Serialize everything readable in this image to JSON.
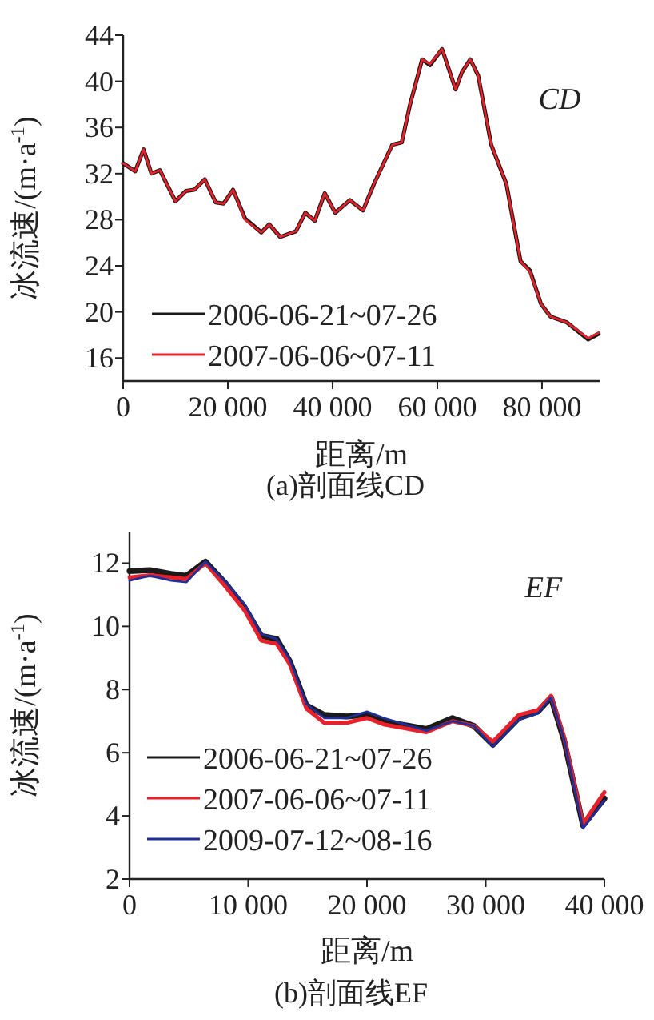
{
  "chart_data": [
    {
      "type": "line",
      "title": "(a)剖面线CD",
      "xlabel": "距离/m",
      "ylabel": "冰流速/(m·a$^{-1}$)",
      "annotations": [
        "CD"
      ],
      "legend": "bottom left",
      "xlim": [
        0,
        91000
      ],
      "ylim": [
        14,
        44
      ],
      "xticks": [
        0,
        {
          "value": 20000,
          "label": "20 000"
        },
        {
          "value": 40000,
          "label": "40 000"
        },
        {
          "value": 60000,
          "label": "60 000"
        },
        {
          "value": 80000,
          "label": "80 000"
        }
      ],
      "yticks": [
        16,
        20,
        24,
        28,
        32,
        36,
        40,
        44
      ],
      "x": [
        0,
        2300,
        3900,
        5400,
        7000,
        10000,
        12000,
        13600,
        15600,
        17700,
        19200,
        21000,
        23300,
        26400,
        27900,
        30000,
        33000,
        34800,
        36600,
        38500,
        40500,
        43300,
        45800,
        47900,
        51400,
        53200,
        54800,
        57100,
        58600,
        60900,
        63500,
        64700,
        66300,
        67800,
        70300,
        73200,
        75900,
        77700,
        79800,
        81600,
        84700,
        88800,
        90800
      ],
      "series": [
        {
          "name": "2006-06-21~07-26",
          "color": "#1a1a1a",
          "values": [
            32.9,
            32.2,
            34.1,
            32.0,
            32.3,
            29.6,
            30.5,
            30.6,
            31.5,
            29.5,
            29.4,
            30.6,
            28.1,
            26.9,
            27.6,
            26.5,
            27.0,
            28.6,
            27.9,
            30.3,
            28.6,
            29.7,
            28.8,
            31.1,
            34.5,
            34.7,
            38.0,
            41.9,
            41.4,
            42.8,
            39.3,
            40.8,
            41.9,
            40.5,
            34.5,
            31.1,
            24.4,
            23.6,
            20.7,
            19.6,
            19.1,
            17.6,
            18.1
          ]
        },
        {
          "name": "2007-06-06~07-11",
          "color": "#e8202a",
          "values": [
            32.9,
            32.2,
            34.1,
            32.0,
            32.3,
            29.6,
            30.5,
            30.6,
            31.5,
            29.5,
            29.4,
            30.6,
            28.0,
            26.9,
            27.6,
            26.5,
            27.0,
            28.6,
            27.9,
            30.3,
            28.6,
            29.7,
            28.8,
            31.1,
            34.5,
            34.7,
            38.0,
            41.9,
            41.5,
            42.8,
            39.3,
            40.8,
            41.9,
            40.5,
            34.5,
            31.1,
            24.4,
            23.5,
            20.7,
            19.6,
            19.1,
            17.7,
            18.2
          ]
        }
      ]
    },
    {
      "type": "line",
      "title": "(b)剖面线EF",
      "xlabel": "距离/m",
      "ylabel": "冰流速/(m·a$^{-1}$)",
      "annotations": [
        "EF"
      ],
      "legend": "bottom left",
      "xlim": [
        0,
        40000
      ],
      "ylim": [
        2,
        13
      ],
      "xticks": [
        0,
        {
          "value": 10000,
          "label": "10 000"
        },
        {
          "value": 20000,
          "label": "20 000"
        },
        {
          "value": 30000,
          "label": "30 000"
        },
        {
          "value": 40000,
          "label": "40 000"
        }
      ],
      "yticks": [
        2,
        4,
        6,
        8,
        10,
        12
      ],
      "x": [
        0,
        1700,
        3500,
        4800,
        6400,
        8000,
        9700,
        11100,
        12400,
        13500,
        14900,
        16400,
        18300,
        20000,
        21400,
        25000,
        27200,
        29000,
        30600,
        32800,
        34400,
        35500,
        36600,
        38200,
        40000
      ],
      "series": [
        {
          "name": "2006-06-21~07-26",
          "color": "#1a1a1a",
          "values": [
            11.75,
            11.78,
            11.66,
            11.6,
            12.05,
            11.4,
            10.6,
            9.7,
            9.6,
            8.9,
            7.5,
            7.2,
            7.15,
            7.2,
            7.0,
            6.75,
            7.1,
            6.85,
            6.25,
            7.1,
            7.3,
            7.75,
            6.4,
            3.7,
            4.55
          ]
        },
        {
          "name": "2007-06-06~07-11",
          "color": "#e8202a",
          "values": [
            11.55,
            11.62,
            11.55,
            11.5,
            12.0,
            11.3,
            10.5,
            9.55,
            9.45,
            8.8,
            7.4,
            6.95,
            6.95,
            7.1,
            6.9,
            6.65,
            7.0,
            6.85,
            6.35,
            7.2,
            7.35,
            7.8,
            6.5,
            3.75,
            4.75
          ]
        },
        {
          "name": "2009-07-12~08-16",
          "color": "#1f2f9a",
          "values": [
            11.45,
            11.6,
            11.45,
            11.4,
            12.05,
            11.45,
            10.7,
            9.75,
            9.6,
            8.95,
            7.55,
            7.1,
            7.1,
            7.3,
            7.1,
            6.7,
            7.0,
            6.85,
            6.2,
            7.05,
            7.25,
            7.75,
            6.45,
            3.6,
            4.5
          ]
        }
      ]
    }
  ]
}
